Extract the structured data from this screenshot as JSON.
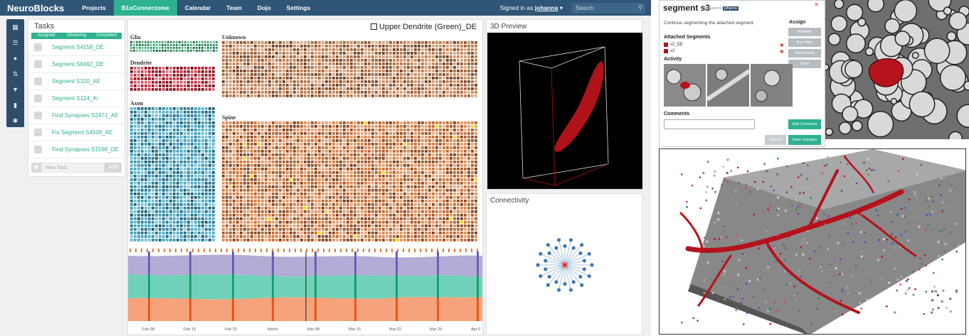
{
  "nav": {
    "logo": "NeuroBlocks",
    "items": [
      "Projects",
      "B1xConnectome",
      "Calendar",
      "Team",
      "Dojo",
      "Settings"
    ],
    "signed_in_prefix": "Signed in as",
    "user": "johanna",
    "search_placeholder": "Search"
  },
  "toolbar": {
    "icons": [
      "grid-icon",
      "list-icon",
      "drop-icon",
      "sort-icon",
      "filter-icon",
      "book-icon",
      "gear-icon"
    ]
  },
  "tasks": {
    "title": "Tasks",
    "tabs": [
      "Assigned",
      "Observing",
      "Completed"
    ],
    "items": [
      "Segment S4158_DE",
      "Segment S8492_DE",
      "Segment S320_AE",
      "Segment S124_AI",
      "Find Synapses S2471_AE",
      "Fix Segment S4509_AE",
      "Find Synapses S1598_DE"
    ],
    "new_task_placeholder": "New Task",
    "add_label": "Add"
  },
  "treemap": {
    "header": "Upper Dendrite (Green)_DE",
    "groups": [
      "Glia",
      "Unknown",
      "Dendrite",
      "Axon",
      "Spine"
    ]
  },
  "timeline": {
    "ticks": [
      "Feb 08",
      "Feb 15",
      "Feb 22",
      "March",
      "Mar 08",
      "Mar 15",
      "Mar 22",
      "Mar 29",
      "Apr 0"
    ]
  },
  "preview": {
    "title": "3D Preview"
  },
  "connectivity": {
    "title": "Connectivity"
  },
  "segment_card": {
    "title": "segment s3",
    "assigned_to_prefix": "assigned to",
    "assigned_user": "johanna",
    "description": "Continue segmenting the attached segment.",
    "attached_label": "Attached Segments",
    "attached": [
      "s2_DE",
      "s2"
    ],
    "activity_label": "Activity",
    "comments_label": "Comments",
    "assign_label": "Assign",
    "assign_buttons": [
      "Member",
      "Due Date",
      "Attachment",
      "State"
    ],
    "add_comment": "Add Comment",
    "cancel": "Cancel",
    "save": "Save changes"
  },
  "colors": {
    "nav": "#2f5577",
    "accent": "#2db18e",
    "glia": "#2fa36b",
    "dendrite": "#c8283c",
    "axon": "#3aa6c8",
    "spine": "#e07a3a",
    "segment": "#b5121b",
    "stream_top": "#b3acd6",
    "stream_mid": "#6fd2b8",
    "stream_bottom": "#f6a27c"
  }
}
